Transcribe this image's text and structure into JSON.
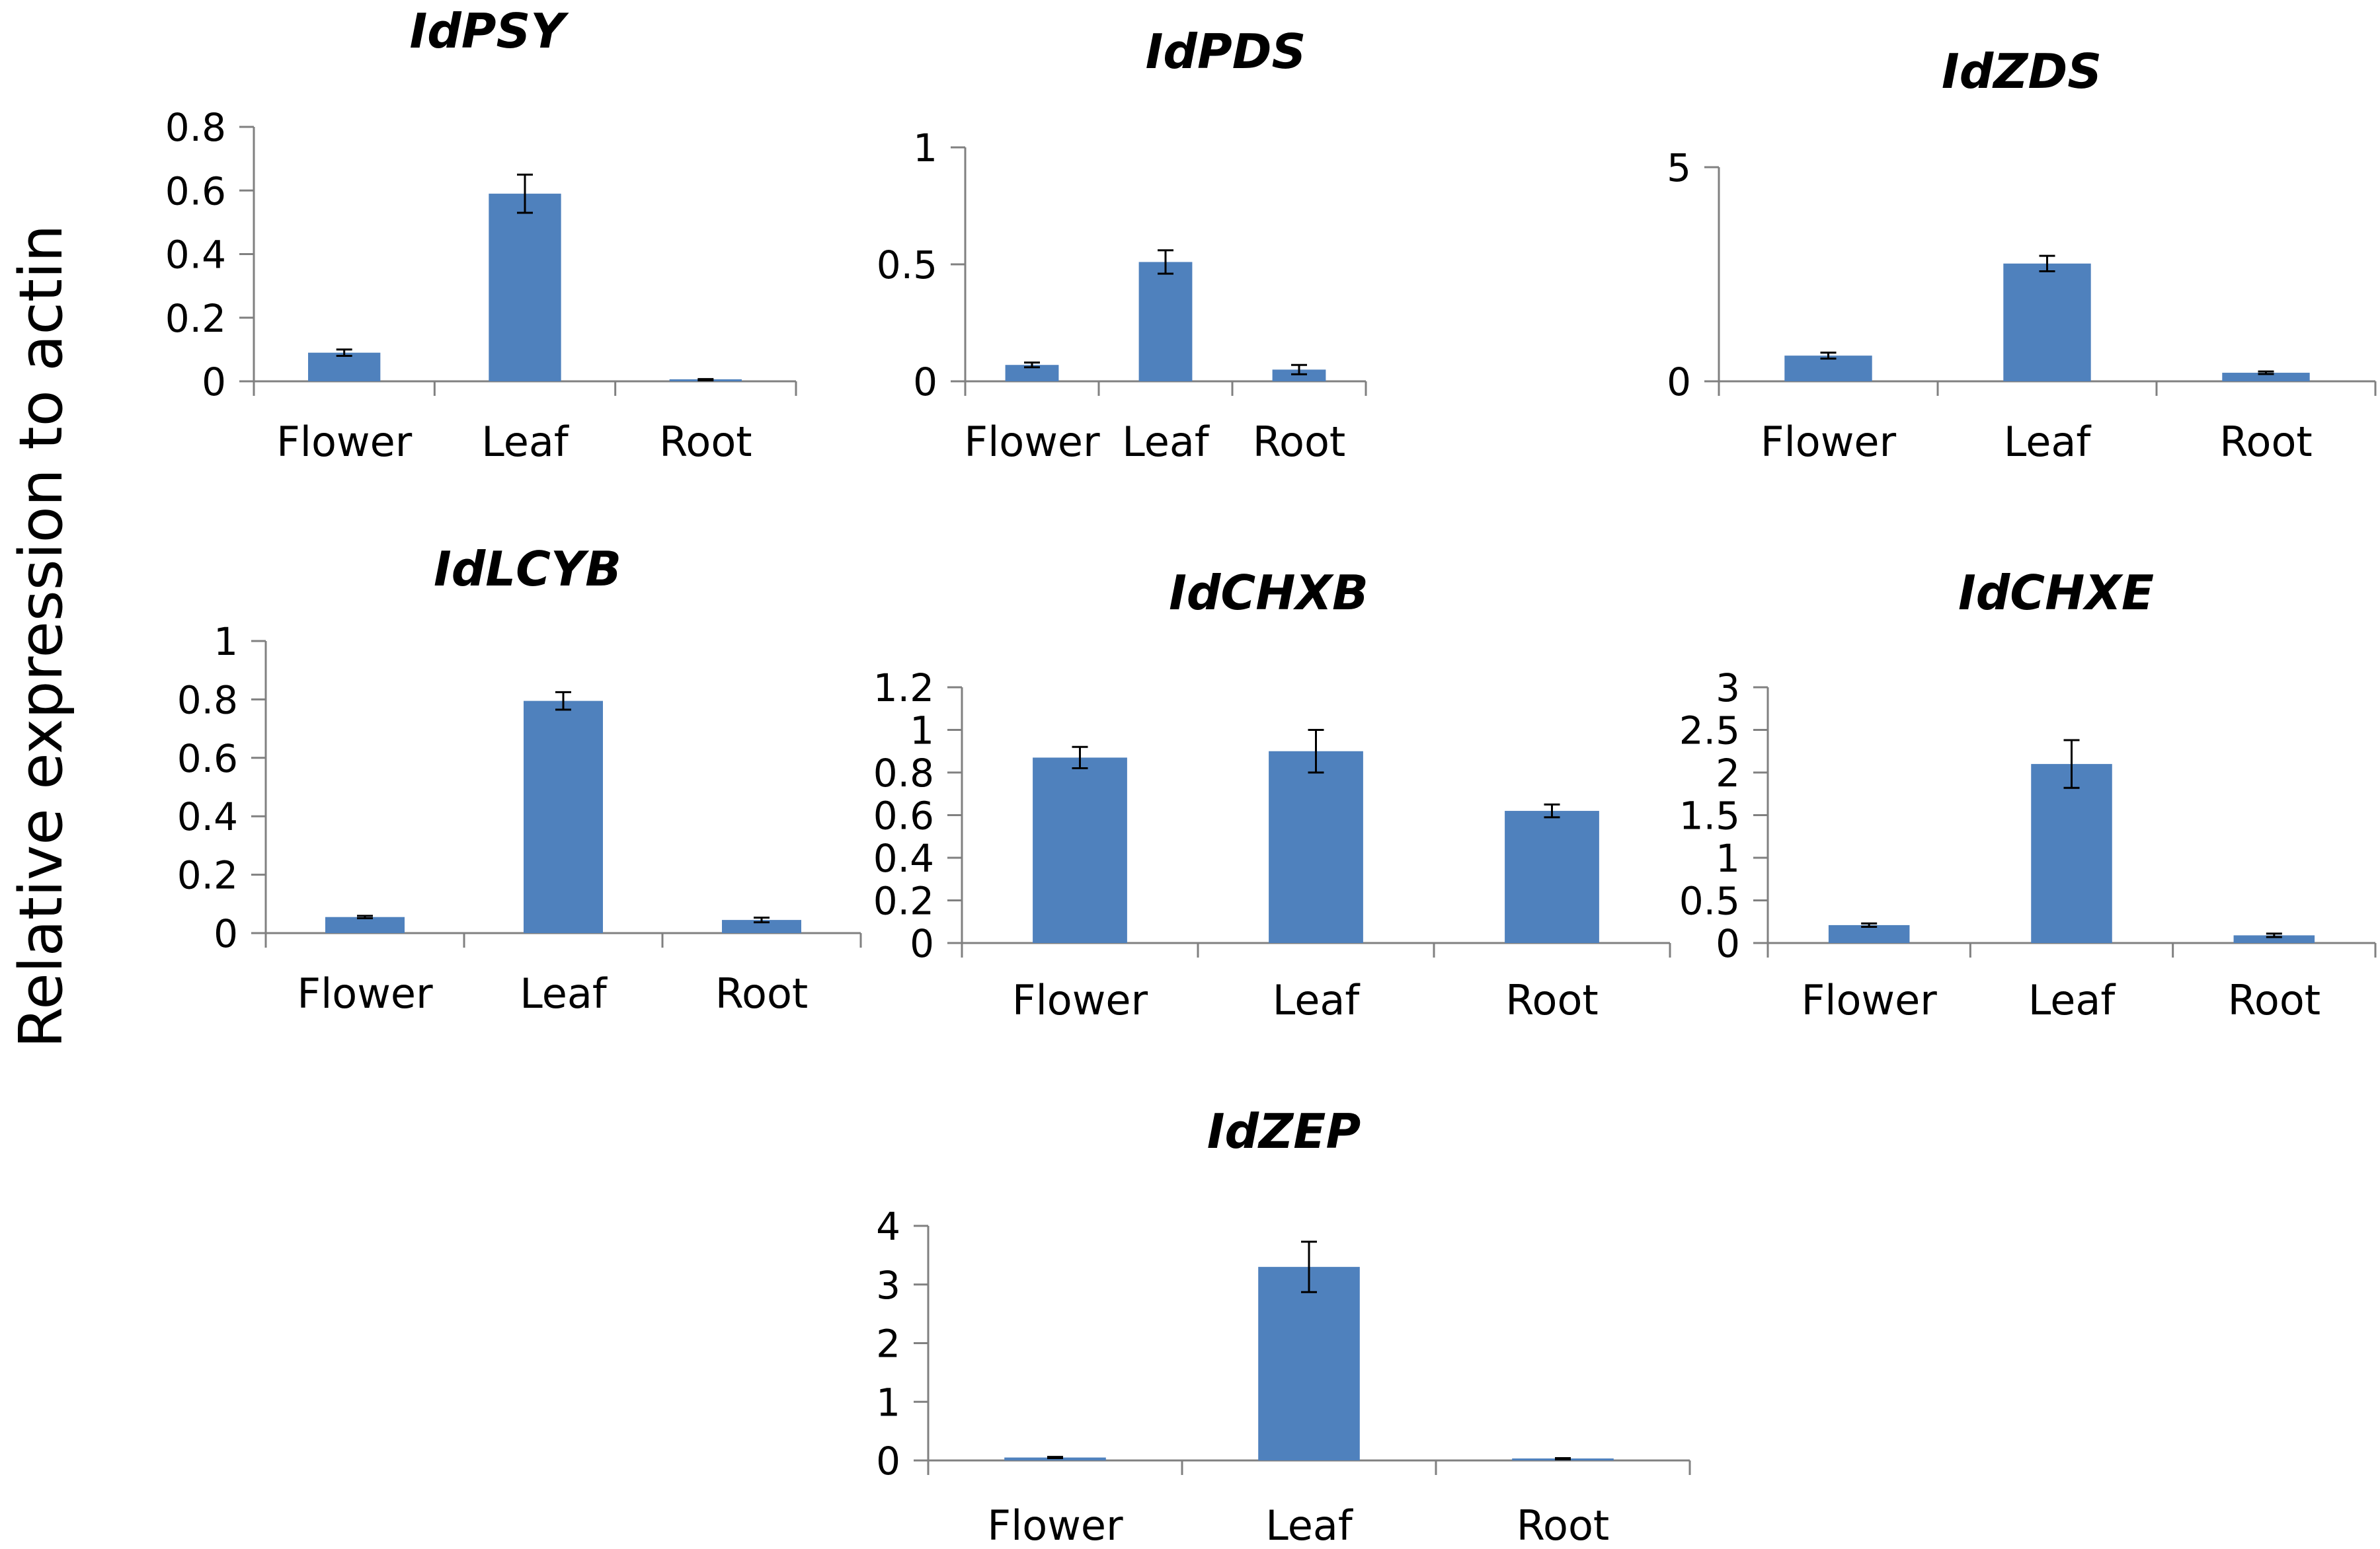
{
  "figure": {
    "ylabel": "Relative expression to actin",
    "bar_color": "#4F81BD",
    "axis_color": "#808080"
  },
  "chart_data": [
    {
      "type": "bar",
      "title": "IdPSY",
      "categories": [
        "Flower",
        "Leaf",
        "Root"
      ],
      "values": [
        0.09,
        0.59,
        0.005
      ],
      "errors": [
        0.01,
        0.06,
        0.002
      ],
      "ylim": [
        0,
        0.8
      ],
      "yticks": [
        0,
        0.2,
        0.4,
        0.6,
        0.8
      ],
      "ytick_labels": [
        "0",
        "0.2",
        "0.4",
        "0.6",
        "0.8"
      ]
    },
    {
      "type": "bar",
      "title": "IdPDS",
      "categories": [
        "Flower",
        "Leaf",
        "Root"
      ],
      "values": [
        0.07,
        0.51,
        0.05
      ],
      "errors": [
        0.01,
        0.05,
        0.02
      ],
      "ylim": [
        0,
        1
      ],
      "yticks": [
        0,
        0.5,
        1
      ],
      "ytick_labels": [
        "0",
        "0.5",
        "1"
      ]
    },
    {
      "type": "bar",
      "title": "IdZDS",
      "categories": [
        "Flower",
        "Leaf",
        "Root"
      ],
      "values": [
        0.6,
        2.75,
        0.2
      ],
      "errors": [
        0.07,
        0.18,
        0.03
      ],
      "ylim": [
        0,
        5
      ],
      "yticks": [
        0,
        5
      ],
      "ytick_labels": [
        "0",
        "5"
      ]
    },
    {
      "type": "bar",
      "title": "IdLCYB",
      "categories": [
        "Flower",
        "Leaf",
        "Root"
      ],
      "values": [
        0.055,
        0.795,
        0.045
      ],
      "errors": [
        0.004,
        0.03,
        0.008
      ],
      "ylim": [
        0,
        1
      ],
      "yticks": [
        0,
        0.2,
        0.4,
        0.6,
        0.8,
        1
      ],
      "ytick_labels": [
        "0",
        "0.2",
        "0.4",
        "0.6",
        "0.8",
        "1"
      ]
    },
    {
      "type": "bar",
      "title": "IdCHXB",
      "categories": [
        "Flower",
        "Leaf",
        "Root"
      ],
      "values": [
        0.87,
        0.9,
        0.62
      ],
      "errors": [
        0.05,
        0.1,
        0.03
      ],
      "ylim": [
        0,
        1.2
      ],
      "yticks": [
        0,
        0.2,
        0.4,
        0.6,
        0.8,
        1,
        1.2
      ],
      "ytick_labels": [
        "0",
        "0.2",
        "0.4",
        "0.6",
        "0.8",
        "1",
        "1.2"
      ]
    },
    {
      "type": "bar",
      "title": "IdCHXE",
      "categories": [
        "Flower",
        "Leaf",
        "Root"
      ],
      "values": [
        0.21,
        2.1,
        0.09
      ],
      "errors": [
        0.02,
        0.28,
        0.02
      ],
      "ylim": [
        0,
        3
      ],
      "yticks": [
        0,
        0.5,
        1,
        1.5,
        2,
        2.5,
        3
      ],
      "ytick_labels": [
        "0",
        "0.5",
        "1",
        "1.5",
        "2",
        "2.5",
        "3"
      ]
    },
    {
      "type": "bar",
      "title": "IdZEP",
      "categories": [
        "Flower",
        "Leaf",
        "Root"
      ],
      "values": [
        0.05,
        3.3,
        0.03
      ],
      "errors": [
        0.01,
        0.43,
        0.01
      ],
      "ylim": [
        0,
        4
      ],
      "yticks": [
        0,
        1,
        2,
        3,
        4
      ],
      "ytick_labels": [
        "0",
        "1",
        "2",
        "3",
        "4"
      ]
    }
  ]
}
